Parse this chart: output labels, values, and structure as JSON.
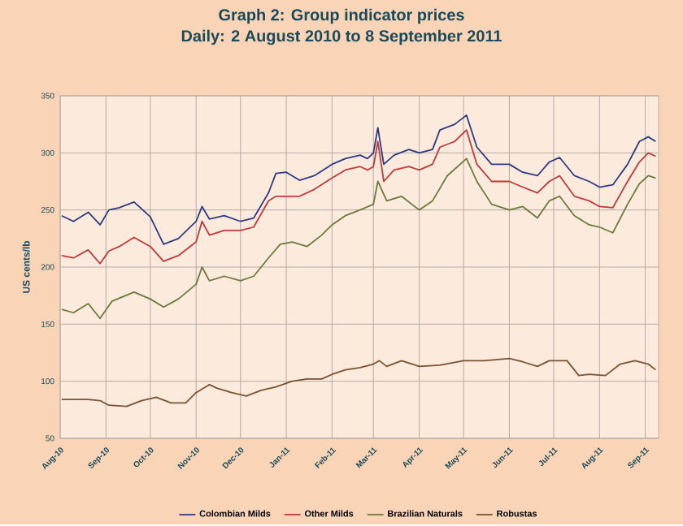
{
  "chart_data": {
    "type": "line",
    "title": "Graph 2: Group indicator prices",
    "subtitle": "Daily: 2 August 2010 to 8 September 2011",
    "ylabel": "US cents/lb",
    "xlim": [
      "2010-08-01",
      "2011-09-10"
    ],
    "ylim": [
      50,
      350
    ],
    "yticks": [
      50,
      100,
      150,
      200,
      250,
      300,
      350
    ],
    "xticks": [
      {
        "value": "2010-08-01",
        "label": "Aug-10"
      },
      {
        "value": "2010-09-01",
        "label": "Sep-10"
      },
      {
        "value": "2010-10-01",
        "label": "Oct-10"
      },
      {
        "value": "2010-11-01",
        "label": "Nov-10"
      },
      {
        "value": "2010-12-01",
        "label": "Dec-10"
      },
      {
        "value": "2011-01-01",
        "label": "Jan-11"
      },
      {
        "value": "2011-02-01",
        "label": "Feb-11"
      },
      {
        "value": "2011-03-01",
        "label": "Mar-11"
      },
      {
        "value": "2011-04-01",
        "label": "Apr-11"
      },
      {
        "value": "2011-05-01",
        "label": "May-11"
      },
      {
        "value": "2011-06-01",
        "label": "Jun-11"
      },
      {
        "value": "2011-07-01",
        "label": "Jul-11"
      },
      {
        "value": "2011-08-01",
        "label": "Aug-11"
      },
      {
        "value": "2011-09-01",
        "label": "Sep-11"
      }
    ],
    "grid": true,
    "legend": "bottom",
    "marker": "none",
    "line_style": "solid",
    "series": [
      {
        "name": "Colombian Milds",
        "color": "#2e3a80",
        "x": [
          "2010-08-02",
          "2010-08-10",
          "2010-08-20",
          "2010-08-28",
          "2010-09-03",
          "2010-09-10",
          "2010-09-20",
          "2010-10-01",
          "2010-10-10",
          "2010-10-20",
          "2010-11-01",
          "2010-11-05",
          "2010-11-10",
          "2010-11-20",
          "2010-12-01",
          "2010-12-10",
          "2010-12-20",
          "2010-12-25",
          "2011-01-01",
          "2011-01-10",
          "2011-01-20",
          "2011-02-01",
          "2011-02-10",
          "2011-02-20",
          "2011-02-25",
          "2011-03-01",
          "2011-03-04",
          "2011-03-08",
          "2011-03-15",
          "2011-03-25",
          "2011-04-01",
          "2011-04-10",
          "2011-04-15",
          "2011-04-25",
          "2011-05-03",
          "2011-05-10",
          "2011-05-20",
          "2011-06-01",
          "2011-06-10",
          "2011-06-20",
          "2011-06-28",
          "2011-07-05",
          "2011-07-15",
          "2011-07-25",
          "2011-08-01",
          "2011-08-10",
          "2011-08-20",
          "2011-08-28",
          "2011-09-03",
          "2011-09-08"
        ],
        "values": [
          245,
          240,
          248,
          237,
          250,
          252,
          257,
          244,
          220,
          225,
          240,
          253,
          242,
          245,
          240,
          243,
          265,
          282,
          283,
          276,
          280,
          290,
          295,
          298,
          295,
          300,
          322,
          290,
          298,
          303,
          300,
          303,
          320,
          325,
          333,
          305,
          290,
          290,
          283,
          280,
          292,
          296,
          280,
          275,
          270,
          272,
          290,
          310,
          314,
          310
        ]
      },
      {
        "name": "Other Milds",
        "color": "#c0393b",
        "x": [
          "2010-08-02",
          "2010-08-10",
          "2010-08-20",
          "2010-08-28",
          "2010-09-03",
          "2010-09-10",
          "2010-09-20",
          "2010-10-01",
          "2010-10-10",
          "2010-10-20",
          "2010-11-01",
          "2010-11-05",
          "2010-11-10",
          "2010-11-20",
          "2010-12-01",
          "2010-12-10",
          "2010-12-20",
          "2010-12-25",
          "2011-01-01",
          "2011-01-10",
          "2011-01-20",
          "2011-02-01",
          "2011-02-10",
          "2011-02-20",
          "2011-02-25",
          "2011-03-01",
          "2011-03-04",
          "2011-03-08",
          "2011-03-15",
          "2011-03-25",
          "2011-04-01",
          "2011-04-10",
          "2011-04-15",
          "2011-04-25",
          "2011-05-03",
          "2011-05-10",
          "2011-05-20",
          "2011-06-01",
          "2011-06-10",
          "2011-06-20",
          "2011-06-28",
          "2011-07-05",
          "2011-07-15",
          "2011-07-25",
          "2011-08-01",
          "2011-08-10",
          "2011-08-20",
          "2011-08-28",
          "2011-09-03",
          "2011-09-08"
        ],
        "values": [
          210,
          208,
          215,
          203,
          214,
          218,
          226,
          218,
          205,
          210,
          222,
          240,
          228,
          232,
          232,
          235,
          258,
          262,
          262,
          262,
          268,
          278,
          285,
          288,
          285,
          288,
          310,
          275,
          285,
          288,
          285,
          290,
          305,
          310,
          320,
          290,
          275,
          275,
          270,
          265,
          275,
          280,
          262,
          258,
          253,
          252,
          275,
          292,
          300,
          297
        ]
      },
      {
        "name": "Brazilian Naturals",
        "color": "#6b7a3a",
        "x": [
          "2010-08-02",
          "2010-08-10",
          "2010-08-20",
          "2010-08-28",
          "2010-09-05",
          "2010-09-20",
          "2010-10-01",
          "2010-10-10",
          "2010-10-20",
          "2010-11-01",
          "2010-11-05",
          "2010-11-10",
          "2010-11-20",
          "2010-12-01",
          "2010-12-10",
          "2010-12-20",
          "2010-12-28",
          "2011-01-05",
          "2011-01-15",
          "2011-01-25",
          "2011-02-01",
          "2011-02-10",
          "2011-02-20",
          "2011-03-01",
          "2011-03-04",
          "2011-03-10",
          "2011-03-20",
          "2011-04-01",
          "2011-04-10",
          "2011-04-20",
          "2011-05-03",
          "2011-05-10",
          "2011-05-20",
          "2011-06-01",
          "2011-06-10",
          "2011-06-20",
          "2011-06-28",
          "2011-07-05",
          "2011-07-15",
          "2011-07-25",
          "2011-08-01",
          "2011-08-10",
          "2011-08-20",
          "2011-08-28",
          "2011-09-03",
          "2011-09-08"
        ],
        "values": [
          163,
          160,
          168,
          155,
          170,
          178,
          172,
          165,
          172,
          185,
          200,
          188,
          192,
          188,
          192,
          208,
          220,
          222,
          218,
          228,
          237,
          245,
          250,
          255,
          275,
          258,
          262,
          250,
          258,
          280,
          295,
          275,
          255,
          250,
          253,
          243,
          258,
          262,
          245,
          237,
          235,
          230,
          255,
          273,
          280,
          278
        ]
      },
      {
        "name": "Robustas",
        "color": "#7a5230",
        "x": [
          "2010-08-02",
          "2010-08-20",
          "2010-08-28",
          "2010-09-03",
          "2010-09-15",
          "2010-09-25",
          "2010-10-05",
          "2010-10-15",
          "2010-10-25",
          "2010-11-01",
          "2010-11-10",
          "2010-11-15",
          "2010-11-25",
          "2010-12-05",
          "2010-12-15",
          "2010-12-25",
          "2011-01-05",
          "2011-01-15",
          "2011-01-25",
          "2011-02-01",
          "2011-02-10",
          "2011-02-20",
          "2011-03-01",
          "2011-03-05",
          "2011-03-10",
          "2011-03-20",
          "2011-04-01",
          "2011-04-15",
          "2011-05-01",
          "2011-05-15",
          "2011-06-01",
          "2011-06-10",
          "2011-06-20",
          "2011-06-28",
          "2011-07-10",
          "2011-07-18",
          "2011-07-25",
          "2011-08-05",
          "2011-08-15",
          "2011-08-25",
          "2011-09-03",
          "2011-09-08"
        ],
        "values": [
          84,
          84,
          83,
          79,
          78,
          83,
          86,
          81,
          81,
          90,
          97,
          94,
          90,
          87,
          92,
          95,
          100,
          102,
          102,
          106,
          110,
          112,
          115,
          118,
          113,
          118,
          113,
          114,
          118,
          118,
          120,
          117,
          113,
          118,
          118,
          105,
          106,
          105,
          115,
          118,
          115,
          110
        ]
      }
    ]
  }
}
